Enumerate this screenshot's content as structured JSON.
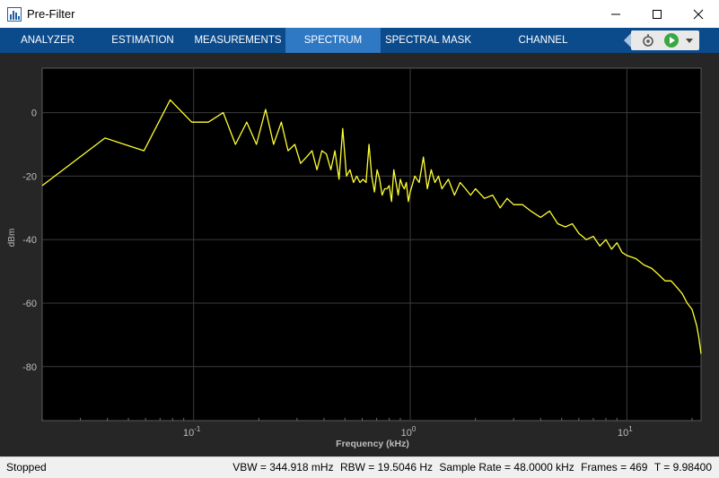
{
  "window": {
    "title": "Pre-Filter"
  },
  "toolstrip": {
    "tabs": [
      {
        "label": "ANALYZER",
        "active": false
      },
      {
        "label": "ESTIMATION",
        "active": false
      },
      {
        "label": "MEASUREMENTS",
        "active": false
      },
      {
        "label": "SPECTRUM",
        "active": true
      },
      {
        "label": "SPECTRAL MASK",
        "active": false
      },
      {
        "label": "CHANNEL MEASUREMENTS",
        "active": false
      }
    ]
  },
  "colors": {
    "trace": "#ffff33",
    "plot_bg": "#000000",
    "frame_bg": "#262626",
    "toolstrip": "#0b4a8b",
    "active_tab": "#2f78c4"
  },
  "chart_data": {
    "type": "line",
    "xlabel": "Frequency (kHz)",
    "ylabel": "dBm",
    "xscale": "log",
    "xlim": [
      0.02,
      22
    ],
    "ylim": [
      -97,
      14
    ],
    "yticks": [
      0,
      -20,
      -40,
      -60,
      -80
    ],
    "xticks": [
      {
        "value": 0.1,
        "base": "10",
        "exp": "-1"
      },
      {
        "value": 1,
        "base": "10",
        "exp": "0"
      },
      {
        "value": 10,
        "base": "10",
        "exp": "1"
      }
    ],
    "grid": true,
    "series": [
      {
        "x": [
          0.02,
          0.039,
          0.059,
          0.078,
          0.098,
          0.117,
          0.137,
          0.156,
          0.176,
          0.195,
          0.215,
          0.234,
          0.254,
          0.273,
          0.293,
          0.312,
          0.332,
          0.352,
          0.371,
          0.391,
          0.41,
          0.43,
          0.449,
          0.469,
          0.488,
          0.508,
          0.527,
          0.547,
          0.566,
          0.586,
          0.605,
          0.625,
          0.645,
          0.664,
          0.684,
          0.703,
          0.723,
          0.742,
          0.762,
          0.781,
          0.8,
          0.82,
          0.84,
          0.86,
          0.88,
          0.9,
          0.92,
          0.94,
          0.96,
          0.98,
          1.0,
          1.05,
          1.1,
          1.15,
          1.2,
          1.25,
          1.3,
          1.35,
          1.4,
          1.5,
          1.6,
          1.7,
          1.8,
          1.9,
          2.0,
          2.2,
          2.4,
          2.6,
          2.8,
          3.0,
          3.3,
          3.6,
          4.0,
          4.4,
          4.8,
          5.2,
          5.6,
          6.0,
          6.5,
          7.0,
          7.5,
          8.0,
          8.5,
          9.0,
          9.5,
          10.0,
          11.0,
          12.0,
          13.0,
          14.0,
          15.0,
          16.0,
          17.0,
          18.0,
          19.0,
          20.0,
          21.0,
          21.5,
          22.0
        ],
        "y": [
          -23,
          -8,
          -12,
          4,
          -3,
          -3,
          0,
          -10,
          -3,
          -10,
          1,
          -10,
          -3,
          -12,
          -10,
          -16,
          -14,
          -12,
          -18,
          -12,
          -13,
          -18,
          -12,
          -21,
          -5,
          -20,
          -18,
          -22,
          -20,
          -22,
          -21,
          -22,
          -10,
          -20,
          -25,
          -18,
          -21,
          -26,
          -24,
          -24,
          -23,
          -28,
          -18,
          -22,
          -26,
          -21,
          -23,
          -24,
          -22,
          -28,
          -25,
          -20,
          -22,
          -14,
          -24,
          -18,
          -22,
          -20,
          -24,
          -21,
          -26,
          -22,
          -24,
          -26,
          -24,
          -27,
          -26,
          -30,
          -27,
          -29,
          -29,
          -31,
          -33,
          -31,
          -35,
          -36,
          -35,
          -38,
          -40,
          -39,
          -42,
          -40,
          -43,
          -41,
          -44,
          -45,
          -46,
          -48,
          -49,
          -51,
          -53,
          -53,
          -55,
          -57,
          -60,
          -62,
          -67,
          -71,
          -76
        ]
      }
    ]
  },
  "status": {
    "state": "Stopped",
    "vbw": "VBW = 344.918 mHz",
    "rbw": "RBW = 19.5046 Hz",
    "sample_rate": "Sample Rate = 48.0000 kHz",
    "frames": "Frames = 469",
    "time": "T = 9.98400"
  }
}
